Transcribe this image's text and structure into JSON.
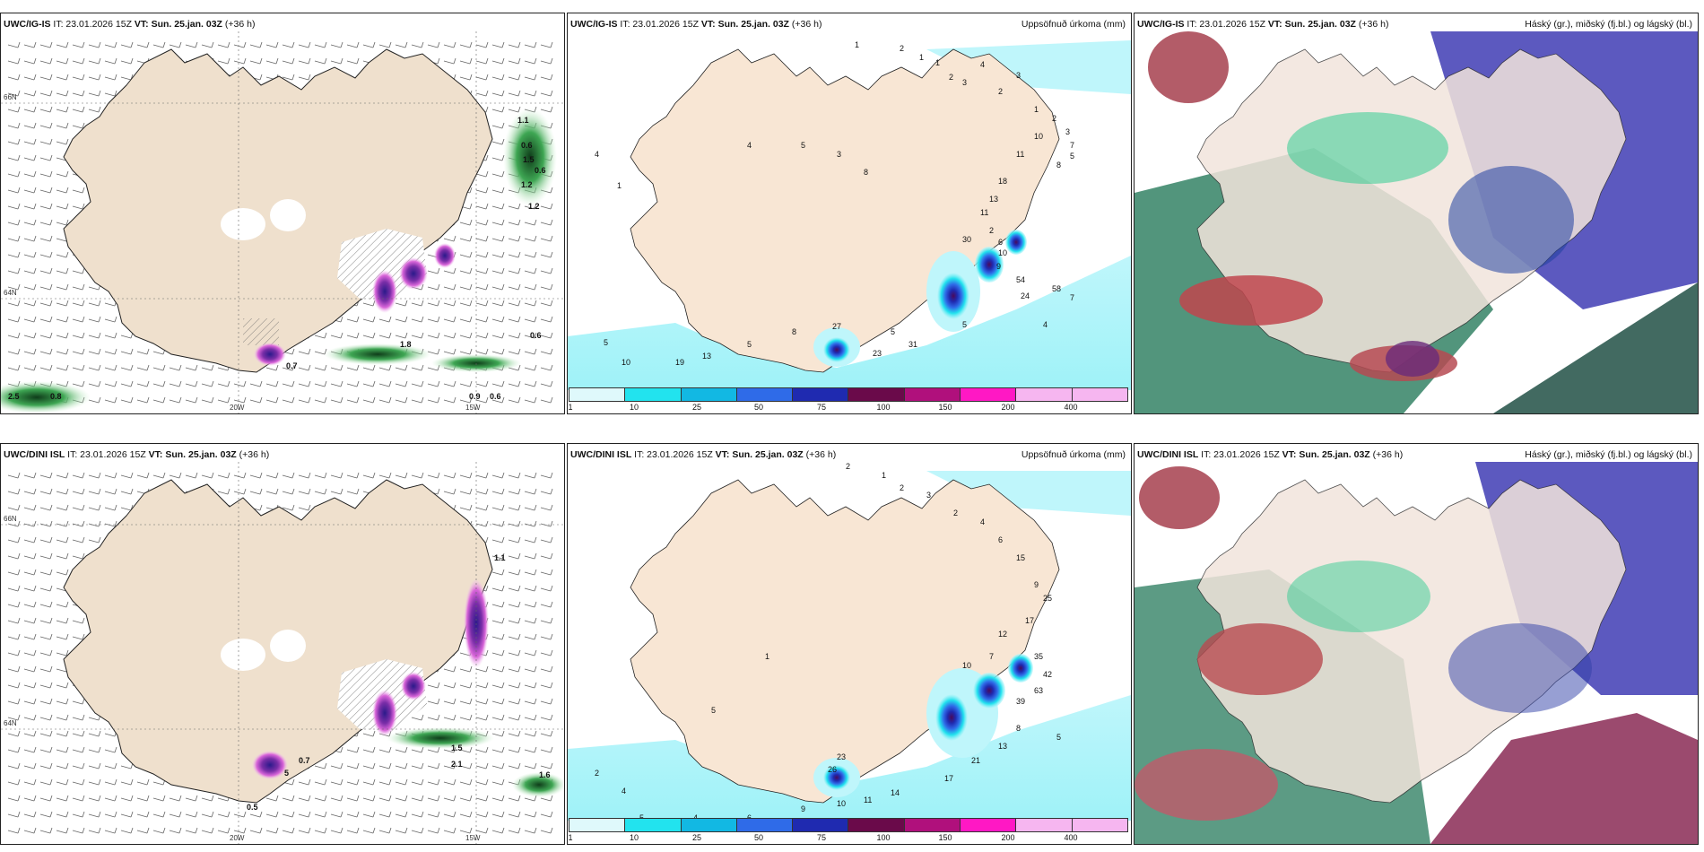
{
  "rows": [
    {
      "model": "UWC/IG-IS",
      "panels": [
        {
          "model": "UWC/IG-IS",
          "it": "IT: 23.01.2026 15Z",
          "vt_label": "VT:",
          "vt": "Sun. 25.jan. 03Z",
          "lead": "(+36 h)",
          "title": ""
        },
        {
          "model": "UWC/IG-IS",
          "it": "IT: 23.01.2026 15Z",
          "vt_label": "VT:",
          "vt": "Sun. 25.jan. 03Z",
          "lead": "(+36 h)",
          "title": "Uppsöfnuð úrkoma (mm)"
        },
        {
          "model": "UWC/IG-IS",
          "it": "IT: 23.01.2026 15Z",
          "vt_label": "VT:",
          "vt": "Sun. 25.jan. 03Z",
          "lead": "(+36 h)",
          "title": "Háský (gr.), miðský (fj.bl.) og lágský (bl.)"
        }
      ],
      "labels": [
        "1.1",
        "0.6",
        "1.5",
        "0.6",
        "1.2",
        "1.2",
        "0.6",
        "2.5",
        "0.8",
        "0.9",
        "0.6",
        "0.7",
        "1.8"
      ],
      "precip_labels": [
        "1",
        "2",
        "1",
        "1",
        "2",
        "3",
        "4",
        "2",
        "3",
        "1",
        "2",
        "3",
        "7",
        "5",
        "8",
        "10",
        "11",
        "18",
        "13",
        "11",
        "2",
        "6",
        "10",
        "9",
        "30",
        "54",
        "24",
        "58",
        "7",
        "4",
        "5",
        "5",
        "31",
        "23",
        "27",
        "8",
        "5",
        "13",
        "19",
        "10",
        "5",
        "4",
        "1",
        "4",
        "5",
        "3",
        "8"
      ]
    },
    {
      "model": "UWC/DINI ISL",
      "panels": [
        {
          "model": "UWC/DINI ISL",
          "it": "IT: 23.01.2026 15Z",
          "vt_label": "VT:",
          "vt": "Sun. 25.jan. 03Z",
          "lead": "(+36 h)",
          "title": ""
        },
        {
          "model": "UWC/DINI ISL",
          "it": "IT: 23.01.2026 15Z",
          "vt_label": "VT:",
          "vt": "Sun. 25.jan. 03Z",
          "lead": "(+36 h)",
          "title": "Uppsöfnuð úrkoma (mm)"
        },
        {
          "model": "UWC/DINI ISL",
          "it": "IT: 23.01.2026 15Z",
          "vt_label": "VT:",
          "vt": "Sun. 25.jan. 03Z",
          "lead": "(+36 h)",
          "title": "Háský (gr.), miðský (fj.bl.) og lágský (bl.)"
        }
      ],
      "labels": [
        "1.1",
        "1.5",
        "2.1",
        "0.7",
        "5",
        "0.5",
        "1.6"
      ],
      "precip_labels": [
        "2",
        "1",
        "2",
        "3",
        "2",
        "4",
        "6",
        "15",
        "9",
        "25",
        "17",
        "12",
        "7",
        "10",
        "35",
        "42",
        "63",
        "39",
        "8",
        "5",
        "13",
        "21",
        "17",
        "14",
        "11",
        "10",
        "9",
        "6",
        "4",
        "5",
        "4",
        "2",
        "23",
        "26",
        "5",
        "1"
      ]
    }
  ],
  "axes": {
    "lat_66": "66N",
    "lat_64": "64N",
    "lon_20w": "20W",
    "lon_15w": "15W"
  },
  "colorbar": {
    "ticks": [
      "1",
      "10",
      "25",
      "50",
      "75",
      "100",
      "150",
      "200",
      "400"
    ],
    "colors": [
      "#dff9fb",
      "#22e3ee",
      "#12b8e3",
      "#2f6be8",
      "#1f2ab0",
      "#6a0a4a",
      "#b0107c",
      "#ff18c4",
      "#f6b6f0"
    ]
  },
  "icons": {
    "wind": "wind-barb-icon"
  }
}
